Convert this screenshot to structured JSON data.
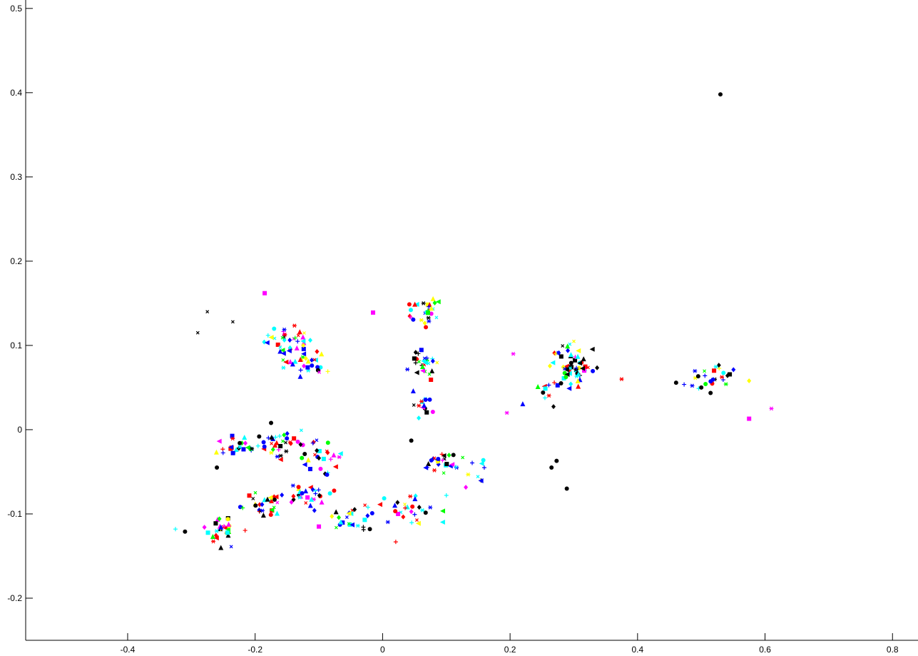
{
  "chart_data": {
    "type": "scatter",
    "title": "",
    "xlabel": "",
    "ylabel": "",
    "xlim": [
      -0.56,
      0.84
    ],
    "ylim": [
      -0.25,
      0.51
    ],
    "grid": false,
    "legend": "none",
    "x_ticks": [
      -0.4,
      -0.2,
      0,
      0.2,
      0.4,
      0.6,
      0.8
    ],
    "x_tick_labels": [
      "-0.4",
      "-0.2",
      "0",
      "0.2",
      "0.4",
      "0.6",
      "0.8"
    ],
    "y_ticks": [
      -0.2,
      -0.1,
      0,
      0.1,
      0.2,
      0.3,
      0.4,
      0.5
    ],
    "y_tick_labels": [
      "-0.2",
      "-0.1",
      "0",
      "0.1",
      "0.2",
      "0.3",
      "0.4",
      "0.5"
    ],
    "colors": {
      "blue": "#0000ff",
      "red": "#ff0000",
      "cyan": "#00ffff",
      "green": "#00ff00",
      "magenta": "#ff00ff",
      "yellow": "#ffff00",
      "black": "#000000"
    },
    "clusters": [
      {
        "cx": -0.15,
        "cy": 0.105,
        "sx": 0.018,
        "sy": 0.012,
        "n": 40
      },
      {
        "cx": -0.115,
        "cy": 0.075,
        "sx": 0.015,
        "sy": 0.01,
        "n": 25
      },
      {
        "cx": 0.065,
        "cy": 0.14,
        "sx": 0.015,
        "sy": 0.008,
        "n": 28
      },
      {
        "cx": 0.065,
        "cy": 0.08,
        "sx": 0.012,
        "sy": 0.01,
        "n": 26
      },
      {
        "cx": 0.065,
        "cy": 0.03,
        "sx": 0.008,
        "sy": 0.007,
        "n": 14
      },
      {
        "cx": -0.22,
        "cy": -0.022,
        "sx": 0.02,
        "sy": 0.007,
        "n": 26
      },
      {
        "cx": -0.15,
        "cy": -0.017,
        "sx": 0.025,
        "sy": 0.007,
        "n": 34
      },
      {
        "cx": -0.095,
        "cy": -0.035,
        "sx": 0.015,
        "sy": 0.01,
        "n": 24
      },
      {
        "cx": -0.255,
        "cy": -0.115,
        "sx": 0.012,
        "sy": 0.012,
        "n": 30
      },
      {
        "cx": -0.19,
        "cy": -0.09,
        "sx": 0.02,
        "sy": 0.008,
        "n": 28
      },
      {
        "cx": -0.125,
        "cy": -0.077,
        "sx": 0.02,
        "sy": 0.006,
        "n": 28
      },
      {
        "cx": -0.05,
        "cy": -0.103,
        "sx": 0.02,
        "sy": 0.007,
        "n": 24
      },
      {
        "cx": 0.035,
        "cy": -0.093,
        "sx": 0.025,
        "sy": 0.01,
        "n": 30
      },
      {
        "cx": 0.085,
        "cy": -0.038,
        "sx": 0.018,
        "sy": 0.006,
        "n": 24
      },
      {
        "cx": 0.3,
        "cy": 0.075,
        "sx": 0.018,
        "sy": 0.014,
        "n": 60
      },
      {
        "cx": 0.25,
        "cy": 0.05,
        "sx": 0.025,
        "sy": 0.012,
        "n": 12
      },
      {
        "cx": 0.515,
        "cy": 0.064,
        "sx": 0.022,
        "sy": 0.007,
        "n": 26
      },
      {
        "cx": 0.145,
        "cy": -0.04,
        "sx": 0.01,
        "sy": 0.015,
        "n": 10
      }
    ],
    "outliers": [
      {
        "x": 0.53,
        "y": 0.398,
        "color": "black",
        "marker": "circle"
      },
      {
        "x": 0.289,
        "y": -0.07,
        "color": "black",
        "marker": "circle"
      },
      {
        "x": 0.265,
        "y": -0.045,
        "color": "black",
        "marker": "circle"
      },
      {
        "x": 0.273,
        "y": -0.037,
        "color": "black",
        "marker": "circle"
      },
      {
        "x": -0.31,
        "y": -0.121,
        "color": "black",
        "marker": "circle"
      },
      {
        "x": -0.02,
        "y": -0.118,
        "color": "black",
        "marker": "circle"
      },
      {
        "x": -0.26,
        "y": -0.045,
        "color": "black",
        "marker": "circle"
      },
      {
        "x": -0.175,
        "y": 0.008,
        "color": "black",
        "marker": "circle"
      },
      {
        "x": 0.045,
        "y": -0.013,
        "color": "black",
        "marker": "circle"
      },
      {
        "x": -0.185,
        "y": 0.162,
        "color": "magenta",
        "marker": "square"
      },
      {
        "x": -0.015,
        "y": 0.139,
        "color": "magenta",
        "marker": "square"
      },
      {
        "x": -0.29,
        "y": 0.115,
        "color": "black",
        "marker": "x"
      },
      {
        "x": -0.275,
        "y": 0.14,
        "color": "black",
        "marker": "x"
      },
      {
        "x": -0.235,
        "y": 0.128,
        "color": "black",
        "marker": "x"
      },
      {
        "x": 0.205,
        "y": 0.09,
        "color": "magenta",
        "marker": "star"
      },
      {
        "x": 0.195,
        "y": 0.02,
        "color": "magenta",
        "marker": "star"
      },
      {
        "x": 0.61,
        "y": 0.025,
        "color": "magenta",
        "marker": "star"
      },
      {
        "x": 0.575,
        "y": 0.013,
        "color": "magenta",
        "marker": "square"
      },
      {
        "x": 0.575,
        "y": 0.058,
        "color": "yellow",
        "marker": "diamond"
      },
      {
        "x": 0.375,
        "y": 0.06,
        "color": "red",
        "marker": "star"
      },
      {
        "x": -0.325,
        "y": -0.118,
        "color": "cyan",
        "marker": "plus"
      },
      {
        "x": -0.1,
        "y": -0.115,
        "color": "magenta",
        "marker": "square"
      },
      {
        "x": 0.1,
        "y": -0.078,
        "color": "cyan",
        "marker": "plus"
      },
      {
        "x": 0.5,
        "y": 0.05,
        "color": "black",
        "marker": "circle"
      }
    ]
  }
}
